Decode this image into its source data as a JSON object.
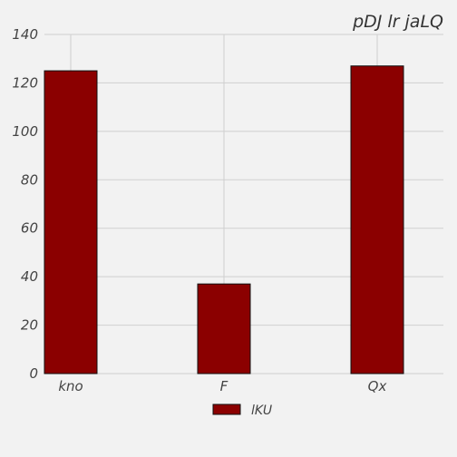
{
  "chart_data": {
    "type": "bar",
    "title": "pDJ  lr  jaLQ",
    "xlabel": "",
    "ylabel": "",
    "categories": [
      "kno",
      "F",
      "Qx"
    ],
    "series": [
      {
        "name": "lKU",
        "values": [
          125,
          37,
          127
        ]
      }
    ],
    "ylim": [
      0,
      140
    ],
    "yticks": [
      "0",
      "20",
      "40",
      "60",
      "80",
      "100",
      "120",
      "140"
    ],
    "grid": true,
    "legend_position": "bottom-center",
    "colors": {
      "bar": "#8b0000",
      "bar_edge": "#111111",
      "grid": "#cfcfcf",
      "background": "#f2f2f2"
    }
  }
}
